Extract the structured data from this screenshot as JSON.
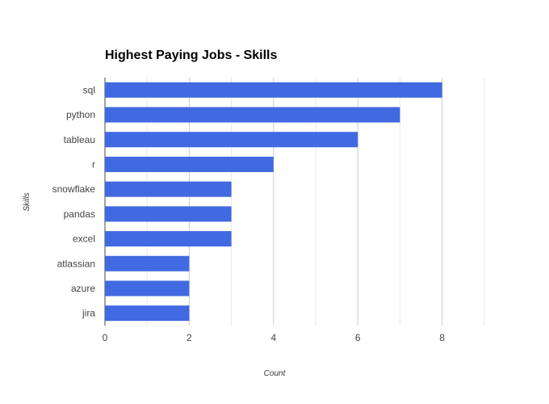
{
  "chart_data": {
    "type": "bar",
    "orientation": "horizontal",
    "title": "Highest Paying Jobs - Skills",
    "xlabel": "Count",
    "ylabel": "Skills",
    "categories": [
      "sql",
      "python",
      "tableau",
      "r",
      "snowflake",
      "pandas",
      "excel",
      "atlassian",
      "azure",
      "jira"
    ],
    "values": [
      8,
      7,
      6,
      4,
      3,
      3,
      3,
      2,
      2,
      2
    ],
    "xlim": [
      0,
      10
    ],
    "xticks": [
      0,
      2,
      4,
      6,
      8
    ],
    "grid": true,
    "bar_color": "#4169e1"
  }
}
